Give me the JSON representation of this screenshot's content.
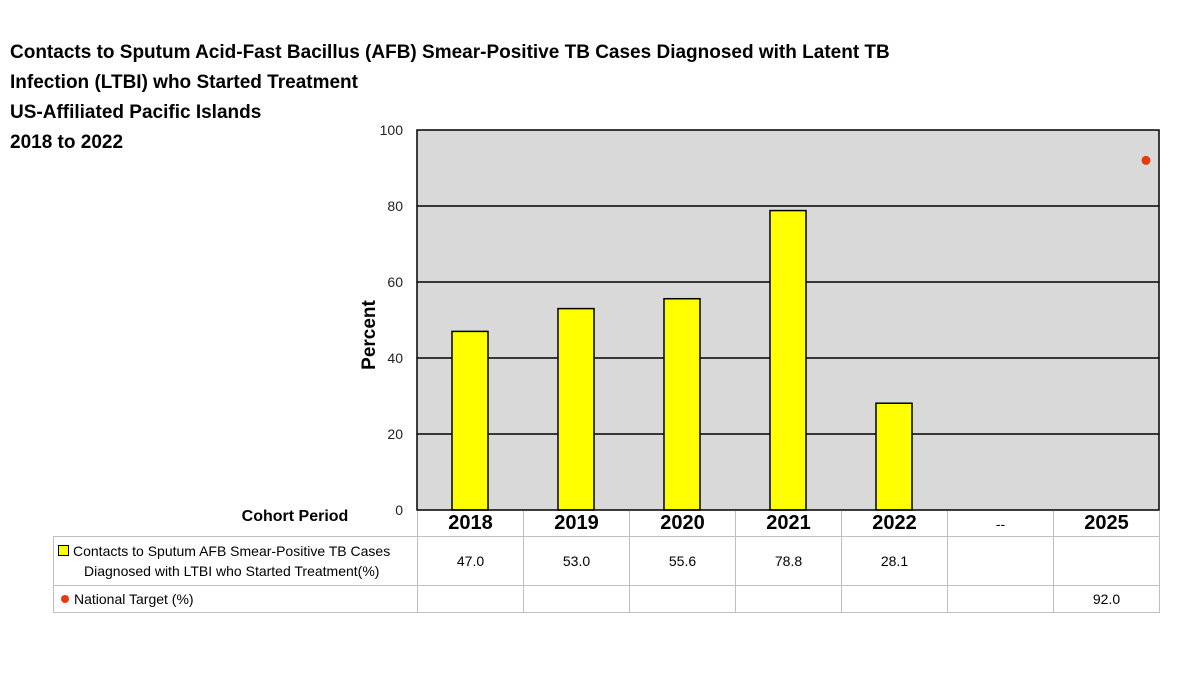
{
  "title_lines": [
    "Contacts to Sputum Acid-Fast Bacillus (AFB) Smear-Positive TB Cases Diagnosed with Latent TB",
    "Infection (LTBI) who Started Treatment",
    "US-Affiliated Pacific Islands",
    "2018 to 2022"
  ],
  "colors": {
    "plot_background": "#d9d9d9",
    "bar_fill": "#ffff00",
    "target_marker": "#e8380c",
    "gridline": "#000000"
  },
  "table": {
    "corner_label": "Cohort Period",
    "columns": [
      "2018",
      "2019",
      "2020",
      "2021",
      "2022",
      "--",
      "2025"
    ],
    "rows": [
      {
        "label_line1": "Contacts to Sputum AFB Smear-Positive TB Cases",
        "label_line2": "Diagnosed with LTBI who Started Treatment(%)",
        "values": [
          "47.0",
          "53.0",
          "55.6",
          "78.8",
          "28.1",
          "",
          ""
        ]
      },
      {
        "label_line1": "National Target (%)",
        "values": [
          "",
          "",
          "",
          "",
          "",
          "",
          "92.0"
        ]
      }
    ]
  },
  "chart_data": {
    "type": "bar",
    "categories": [
      "2018",
      "2019",
      "2020",
      "2021",
      "2022",
      "--",
      "2025"
    ],
    "series": [
      {
        "name": "Contacts to Sputum AFB Smear-Positive TB Cases Diagnosed with LTBI who Started Treatment(%)",
        "type": "bar",
        "values": [
          47.0,
          53.0,
          55.6,
          78.8,
          28.1,
          null,
          null
        ]
      },
      {
        "name": "National Target (%)",
        "type": "scatter",
        "values": [
          null,
          null,
          null,
          null,
          null,
          null,
          92.0
        ]
      }
    ],
    "ylabel": "Percent",
    "xlabel": "Cohort Period",
    "ylim": [
      0,
      100
    ],
    "yticks": [
      0,
      20,
      40,
      60,
      80,
      100
    ],
    "grid": true,
    "legend": "data table below chart"
  }
}
